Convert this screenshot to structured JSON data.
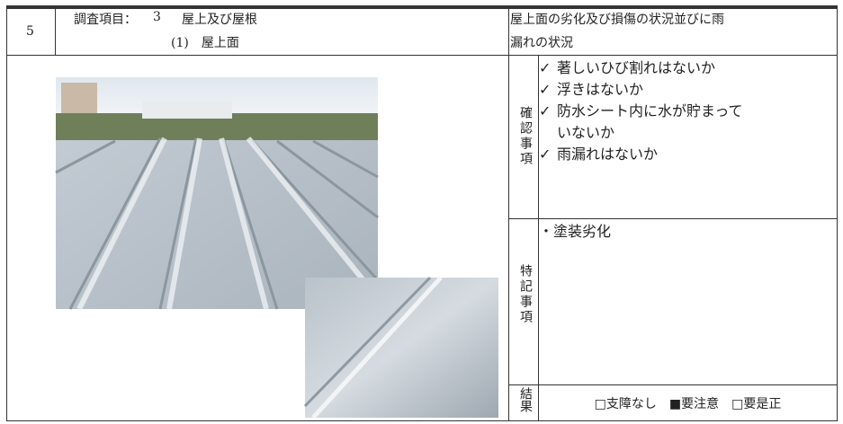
{
  "header": {
    "number": "5",
    "item_label": "調査項目：",
    "item_number": "3",
    "item_name": "屋上及び屋根",
    "sub_item": "(1)　屋上面",
    "description_lines": [
      "屋上面の劣化及び損傷の状況並びに雨",
      "漏れの状況"
    ]
  },
  "check": {
    "label": "確認事項",
    "items": [
      {
        "mark": "✓",
        "text": "著しいひび割れはないか"
      },
      {
        "mark": "✓",
        "text": "浮きはないか"
      },
      {
        "mark": "✓",
        "text": "防水シート内に水が貯まって"
      },
      {
        "text": "いないか"
      },
      {
        "mark": "✓",
        "text": "雨漏れはないか"
      }
    ]
  },
  "notes": {
    "label": "特記事項",
    "items": [
      "・塗装劣化"
    ]
  },
  "result": {
    "label": "結果",
    "options": [
      "□支障なし",
      "■要注意",
      "□要是正"
    ]
  }
}
